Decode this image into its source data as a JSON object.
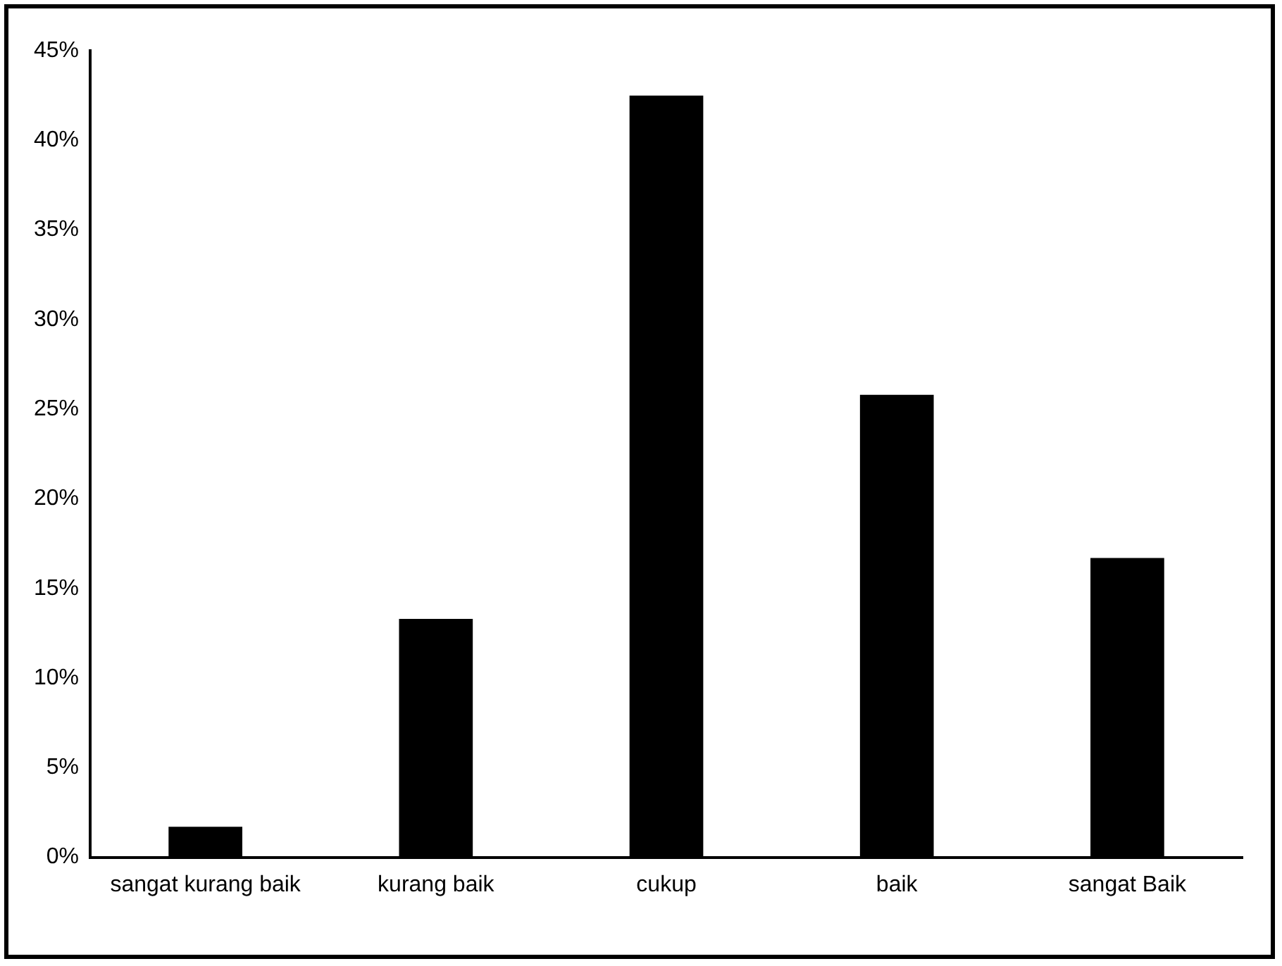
{
  "chart_data": {
    "type": "bar",
    "categories": [
      "sangat kurang baik",
      "kurang baik",
      "cukup",
      "baik",
      "sangat Baik"
    ],
    "values": [
      1.7,
      13.3,
      42.5,
      25.8,
      16.7
    ],
    "color": "#000000",
    "ylim": [
      0,
      45
    ],
    "yticks": [
      {
        "value": 0,
        "label": "0%"
      },
      {
        "value": 5,
        "label": "5%"
      },
      {
        "value": 10,
        "label": "10%"
      },
      {
        "value": 15,
        "label": "15%"
      },
      {
        "value": 20,
        "label": "20%"
      },
      {
        "value": 25,
        "label": "25%"
      },
      {
        "value": 30,
        "label": "30%"
      },
      {
        "value": 35,
        "label": "35%"
      },
      {
        "value": 40,
        "label": "40%"
      },
      {
        "value": 45,
        "label": "45%"
      }
    ],
    "grid": false,
    "legend": false
  }
}
